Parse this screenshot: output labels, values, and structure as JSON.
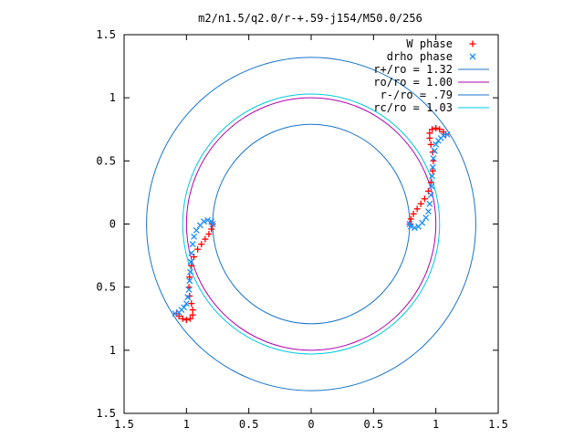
{
  "chart_data": {
    "type": "scatter",
    "title": "m2/n1.5/q2.0/r-+.59-j154/M50.0/256",
    "xlim": [
      -1.5,
      1.5
    ],
    "ylim": [
      -1.5,
      1.5
    ],
    "x_ticks": [
      {
        "value": -1.5,
        "label": "1.5"
      },
      {
        "value": -1.0,
        "label": "1"
      },
      {
        "value": -0.5,
        "label": "0.5"
      },
      {
        "value": 0.0,
        "label": "0"
      },
      {
        "value": 0.5,
        "label": "0.5"
      },
      {
        "value": 1.0,
        "label": "1"
      },
      {
        "value": 1.5,
        "label": "1.5"
      }
    ],
    "y_ticks": [
      {
        "value": 1.5,
        "label": "1.5"
      },
      {
        "value": 1.0,
        "label": "1"
      },
      {
        "value": 0.5,
        "label": "0.5"
      },
      {
        "value": 0.0,
        "label": "0"
      },
      {
        "value": -0.5,
        "label": "0.5"
      },
      {
        "value": -1.0,
        "label": "1"
      },
      {
        "value": -1.5,
        "label": "1.5"
      }
    ],
    "legend_position": "top-right",
    "series": [
      {
        "name": "W phase",
        "kind": "points",
        "marker": "plus",
        "color": "#ff0000",
        "points": [
          [
            0.79,
            0.0
          ],
          [
            0.8,
            0.04
          ],
          [
            0.82,
            0.08
          ],
          [
            0.85,
            0.12
          ],
          [
            0.88,
            0.16
          ],
          [
            0.91,
            0.2
          ],
          [
            0.94,
            0.26
          ],
          [
            0.96,
            0.33
          ],
          [
            0.975,
            0.42
          ],
          [
            0.98,
            0.5
          ],
          [
            0.975,
            0.57
          ],
          [
            0.96,
            0.63
          ],
          [
            0.95,
            0.68
          ],
          [
            0.95,
            0.72
          ],
          [
            0.97,
            0.75
          ],
          [
            1.0,
            0.76
          ],
          [
            1.03,
            0.75
          ],
          [
            1.06,
            0.73
          ],
          [
            1.08,
            0.71
          ],
          [
            -0.79,
            0.0
          ],
          [
            -0.8,
            -0.04
          ],
          [
            -0.82,
            -0.08
          ],
          [
            -0.85,
            -0.12
          ],
          [
            -0.88,
            -0.16
          ],
          [
            -0.91,
            -0.2
          ],
          [
            -0.94,
            -0.26
          ],
          [
            -0.96,
            -0.33
          ],
          [
            -0.975,
            -0.42
          ],
          [
            -0.98,
            -0.5
          ],
          [
            -0.975,
            -0.57
          ],
          [
            -0.96,
            -0.63
          ],
          [
            -0.95,
            -0.68
          ],
          [
            -0.95,
            -0.72
          ],
          [
            -0.97,
            -0.75
          ],
          [
            -1.0,
            -0.76
          ],
          [
            -1.03,
            -0.75
          ],
          [
            -1.06,
            -0.73
          ],
          [
            -1.08,
            -0.71
          ]
        ]
      },
      {
        "name": "drho phase",
        "kind": "points",
        "marker": "cross",
        "color": "#1e90ff",
        "points": [
          [
            0.79,
            0.0
          ],
          [
            0.8,
            -0.02
          ],
          [
            0.83,
            -0.03
          ],
          [
            0.86,
            -0.02
          ],
          [
            0.89,
            0.01
          ],
          [
            0.92,
            0.05
          ],
          [
            0.94,
            0.1
          ],
          [
            0.95,
            0.16
          ],
          [
            0.96,
            0.23
          ],
          [
            0.965,
            0.3
          ],
          [
            0.97,
            0.38
          ],
          [
            0.975,
            0.45
          ],
          [
            0.98,
            0.52
          ],
          [
            0.99,
            0.58
          ],
          [
            1.0,
            0.63
          ],
          [
            1.02,
            0.66
          ],
          [
            1.04,
            0.68
          ],
          [
            1.06,
            0.7
          ],
          [
            1.09,
            0.71
          ],
          [
            -0.79,
            0.0
          ],
          [
            -0.8,
            0.02
          ],
          [
            -0.83,
            0.03
          ],
          [
            -0.86,
            0.02
          ],
          [
            -0.89,
            -0.01
          ],
          [
            -0.92,
            -0.05
          ],
          [
            -0.94,
            -0.1
          ],
          [
            -0.95,
            -0.16
          ],
          [
            -0.96,
            -0.23
          ],
          [
            -0.965,
            -0.3
          ],
          [
            -0.97,
            -0.38
          ],
          [
            -0.975,
            -0.45
          ],
          [
            -0.98,
            -0.52
          ],
          [
            -0.99,
            -0.58
          ],
          [
            -1.0,
            -0.63
          ],
          [
            -1.02,
            -0.66
          ],
          [
            -1.04,
            -0.68
          ],
          [
            -1.06,
            -0.7
          ],
          [
            -1.09,
            -0.71
          ]
        ]
      },
      {
        "name": "r+/ro = 1.32",
        "kind": "circle",
        "radius": 1.32,
        "color": "#1874cd"
      },
      {
        "name": "ro/ro = 1.00",
        "kind": "circle",
        "radius": 1.0,
        "color": "#b000b0"
      },
      {
        "name": "r-/ro = .79",
        "kind": "circle",
        "radius": 0.79,
        "color": "#1874cd"
      },
      {
        "name": "rc/ro = 1.03",
        "kind": "circle",
        "radius": 1.03,
        "color": "#00c8e0"
      }
    ]
  }
}
